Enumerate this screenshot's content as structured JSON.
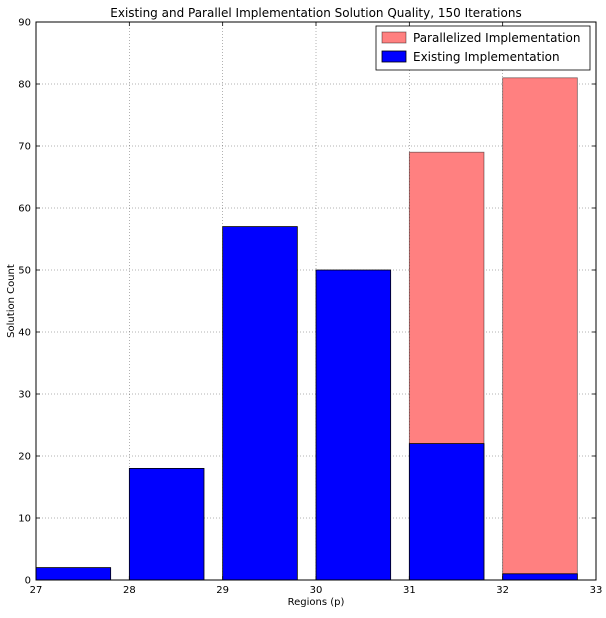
{
  "chart_data": {
    "type": "bar",
    "title": "Existing and Parallel Implementation Solution Quality, 150 Iterations",
    "xlabel": "Regions (p)",
    "ylabel": "Solution Count",
    "xlim": [
      27,
      33
    ],
    "ylim": [
      0,
      90
    ],
    "x_ticks": [
      27,
      28,
      29,
      30,
      31,
      32,
      33
    ],
    "y_ticks": [
      0,
      10,
      20,
      30,
      40,
      50,
      60,
      70,
      80,
      90
    ],
    "grid": true,
    "legend_position": "top-right",
    "bar_width": 0.8,
    "series": [
      {
        "name": "Parallelized Implementation",
        "color": "#ff8080",
        "x": [
          31,
          32
        ],
        "values": [
          69,
          81
        ]
      },
      {
        "name": "Existing Implementation",
        "color": "#0000ff",
        "x": [
          27,
          28,
          29,
          30,
          31,
          32
        ],
        "values": [
          2,
          18,
          57,
          50,
          22,
          1
        ]
      }
    ]
  }
}
